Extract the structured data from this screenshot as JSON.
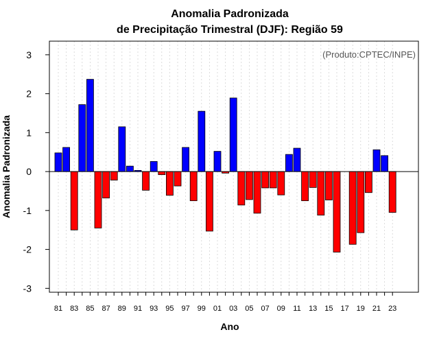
{
  "chart_data": {
    "type": "bar",
    "title": [
      "Anomalia Padronizada",
      "de Precipitação Trimestral (DJF): Região 59"
    ],
    "xlabel": "Ano",
    "ylabel": "Anomalia Padronizada",
    "annotation": "(Produto:CPTEC/INPE)",
    "ylim": [
      -3.1,
      3.35
    ],
    "yticks": [
      -3,
      -2,
      -1,
      0,
      1,
      2,
      3
    ],
    "grid": "vertical-dotted",
    "colors": {
      "positive": "#0000ff",
      "negative": "#ff0000",
      "grid": "#d3d3d3"
    },
    "categories": [
      "81",
      "82",
      "83",
      "84",
      "85",
      "86",
      "87",
      "88",
      "89",
      "90",
      "91",
      "92",
      "93",
      "94",
      "95",
      "96",
      "97",
      "98",
      "99",
      "00",
      "01",
      "02",
      "03",
      "04",
      "05",
      "06",
      "07",
      "08",
      "09",
      "10",
      "11",
      "12",
      "13",
      "14",
      "15",
      "16",
      "17",
      "18",
      "19",
      "20",
      "21",
      "22",
      "23"
    ],
    "tick_labels": [
      "81",
      "83",
      "85",
      "87",
      "89",
      "91",
      "93",
      "95",
      "97",
      "99",
      "01",
      "03",
      "05",
      "07",
      "09",
      "11",
      "13",
      "15",
      "17",
      "19",
      "21",
      "23"
    ],
    "values": [
      0.48,
      0.62,
      -1.5,
      1.72,
      2.37,
      -1.45,
      -0.68,
      -0.22,
      1.15,
      0.14,
      0.03,
      -0.48,
      0.26,
      -0.08,
      -0.61,
      -0.37,
      0.62,
      -0.75,
      1.55,
      -1.53,
      0.52,
      -0.04,
      1.89,
      -0.86,
      -0.72,
      -1.07,
      -0.42,
      -0.42,
      -0.6,
      0.44,
      0.6,
      -0.75,
      -0.41,
      -1.12,
      -0.73,
      -2.07,
      0.0,
      -1.87,
      -1.57,
      -0.54,
      0.56,
      0.41,
      -1.05
    ]
  }
}
